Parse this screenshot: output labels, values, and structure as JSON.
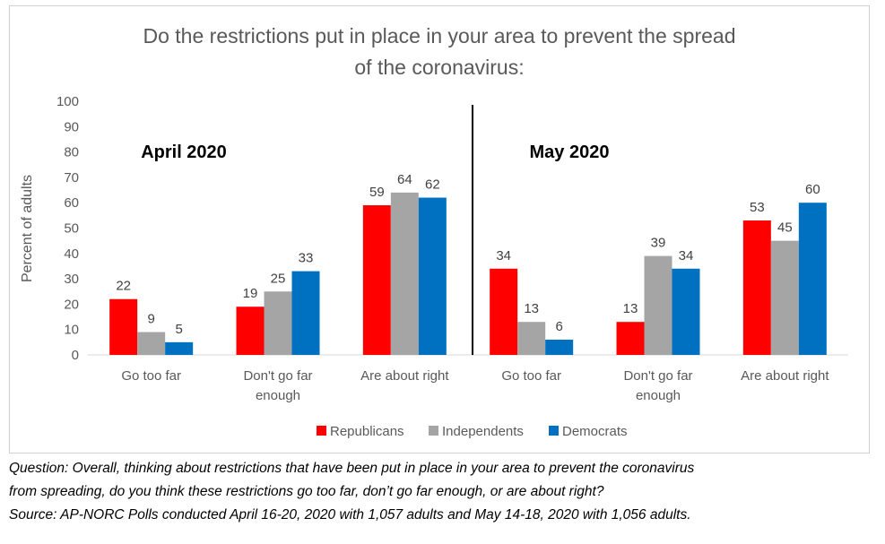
{
  "chart_data": {
    "type": "bar",
    "title_line1": "Do the restrictions put in place in your area to prevent the spread",
    "title_line2": "of the coronavirus:",
    "ylabel": "Percent of adults",
    "ylim": [
      0,
      100
    ],
    "yticks": [
      0,
      10,
      20,
      30,
      40,
      50,
      60,
      70,
      80,
      90,
      100
    ],
    "grid": false,
    "legend_position": "bottom",
    "panels": [
      {
        "label": "April 2020",
        "categories": [
          {
            "line1": "Go too far",
            "line2": ""
          },
          {
            "line1": "Don't go far",
            "line2": "enough"
          },
          {
            "line1": "Are about right",
            "line2": ""
          }
        ],
        "series": [
          {
            "name": "Republicans",
            "color": "#ff0000",
            "values": [
              22,
              19,
              59
            ]
          },
          {
            "name": "Independents",
            "color": "#a5a5a5",
            "values": [
              9,
              25,
              64
            ]
          },
          {
            "name": "Democrats",
            "color": "#0070c0",
            "values": [
              5,
              33,
              62
            ]
          }
        ]
      },
      {
        "label": "May 2020",
        "categories": [
          {
            "line1": "Go too far",
            "line2": ""
          },
          {
            "line1": "Don't go far",
            "line2": "enough"
          },
          {
            "line1": "Are about right",
            "line2": ""
          }
        ],
        "series": [
          {
            "name": "Republicans",
            "color": "#ff0000",
            "values": [
              34,
              13,
              53
            ]
          },
          {
            "name": "Independents",
            "color": "#a5a5a5",
            "values": [
              13,
              39,
              45
            ]
          },
          {
            "name": "Democrats",
            "color": "#0070c0",
            "values": [
              6,
              34,
              60
            ]
          }
        ]
      }
    ],
    "legend": [
      {
        "name": "Republicans",
        "color": "#ff0000"
      },
      {
        "name": "Independents",
        "color": "#a5a5a5"
      },
      {
        "name": "Democrats",
        "color": "#0070c0"
      }
    ]
  },
  "footnote": {
    "line1": "Question: Overall, thinking about restrictions that have been put in place in your area to prevent the coronavirus",
    "line2": "from spreading, do you think these restrictions go too far, don’t go far enough, or are about right?",
    "line3": "Source: AP-NORC Polls conducted April 16-20, 2020 with 1,057 adults and May 14-18, 2020 with 1,056 adults."
  }
}
